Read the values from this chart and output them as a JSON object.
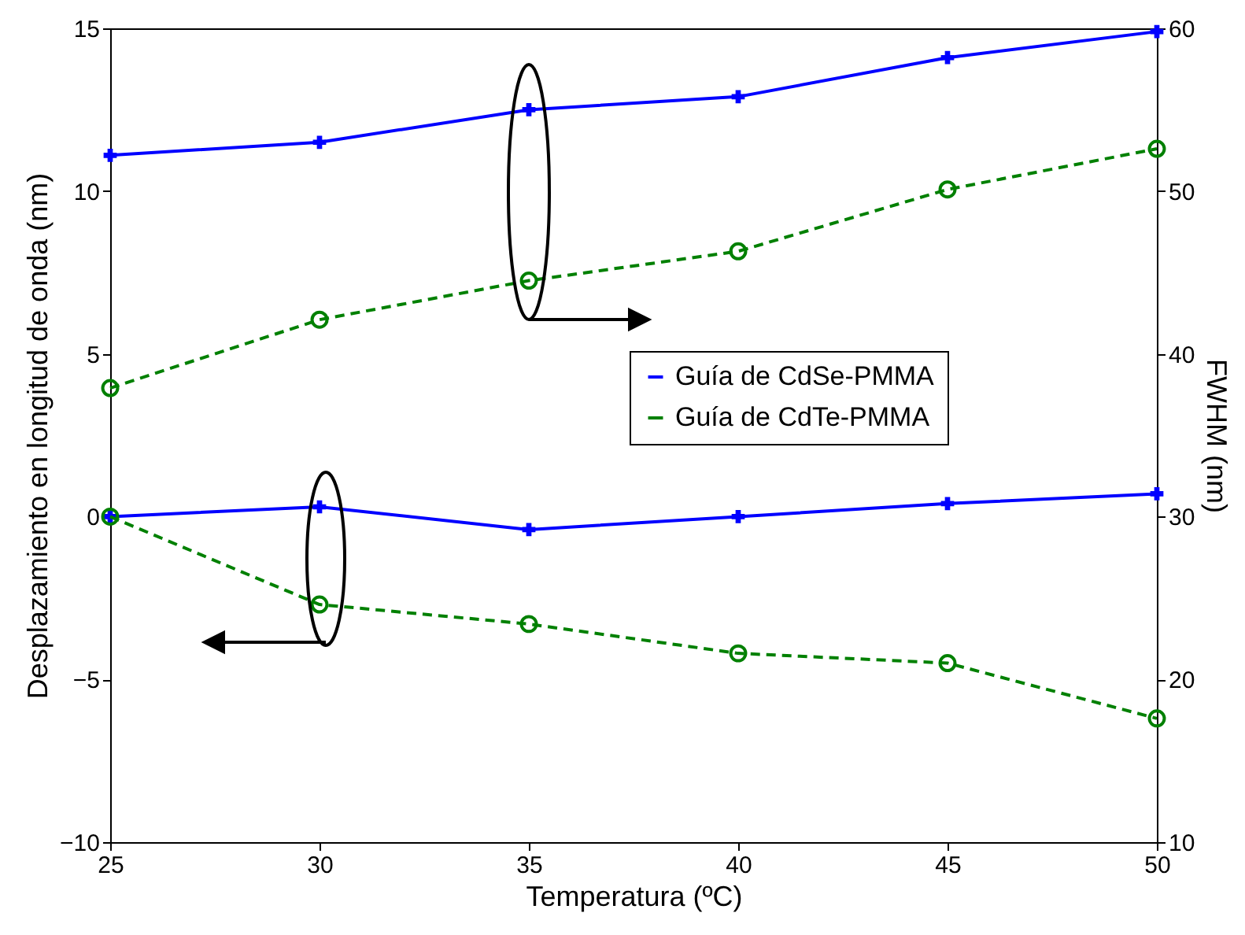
{
  "chart_data": {
    "type": "line",
    "xlabel": "Temperatura (ºC)",
    "ylabel": "Desplazamiento en longitud de onda (nm)",
    "y2label": "FWHM (nm)",
    "x": [
      25,
      30,
      35,
      40,
      45,
      50
    ],
    "series": [
      {
        "name": "Guía de CdSe-PMMA",
        "color": "#0000ff",
        "marker": "cross",
        "line_style": "solid",
        "values": [
          0,
          0.3,
          -0.4,
          0,
          0.4,
          0.7
        ]
      },
      {
        "name": "Guía de CdTe-PMMA",
        "color": "#008000",
        "marker": "circle",
        "line_style": "dashed",
        "values": [
          0,
          -2.7,
          -3.3,
          -4.2,
          -4.5,
          -6.2
        ]
      },
      {
        "color": "#0000ff",
        "marker": "cross",
        "line_style": "solid",
        "axis": "y2",
        "values": [
          52.2,
          53.0,
          55.0,
          55.8,
          58.2,
          59.8
        ]
      },
      {
        "color": "#008000",
        "marker": "circle",
        "line_style": "dashed",
        "axis": "y2",
        "values": [
          37.9,
          42.1,
          44.5,
          46.3,
          50.1,
          52.6
        ]
      }
    ],
    "xlim": [
      25,
      50
    ],
    "xticks": [
      25,
      30,
      35,
      40,
      45,
      50
    ],
    "ylim": [
      -10,
      15
    ],
    "yticks": [
      -10,
      -5,
      0,
      5,
      10,
      15
    ],
    "y2lim": [
      10,
      60
    ],
    "y2ticks": [
      10,
      20,
      30,
      40,
      50,
      60
    ],
    "grid": false,
    "legend": "right"
  }
}
